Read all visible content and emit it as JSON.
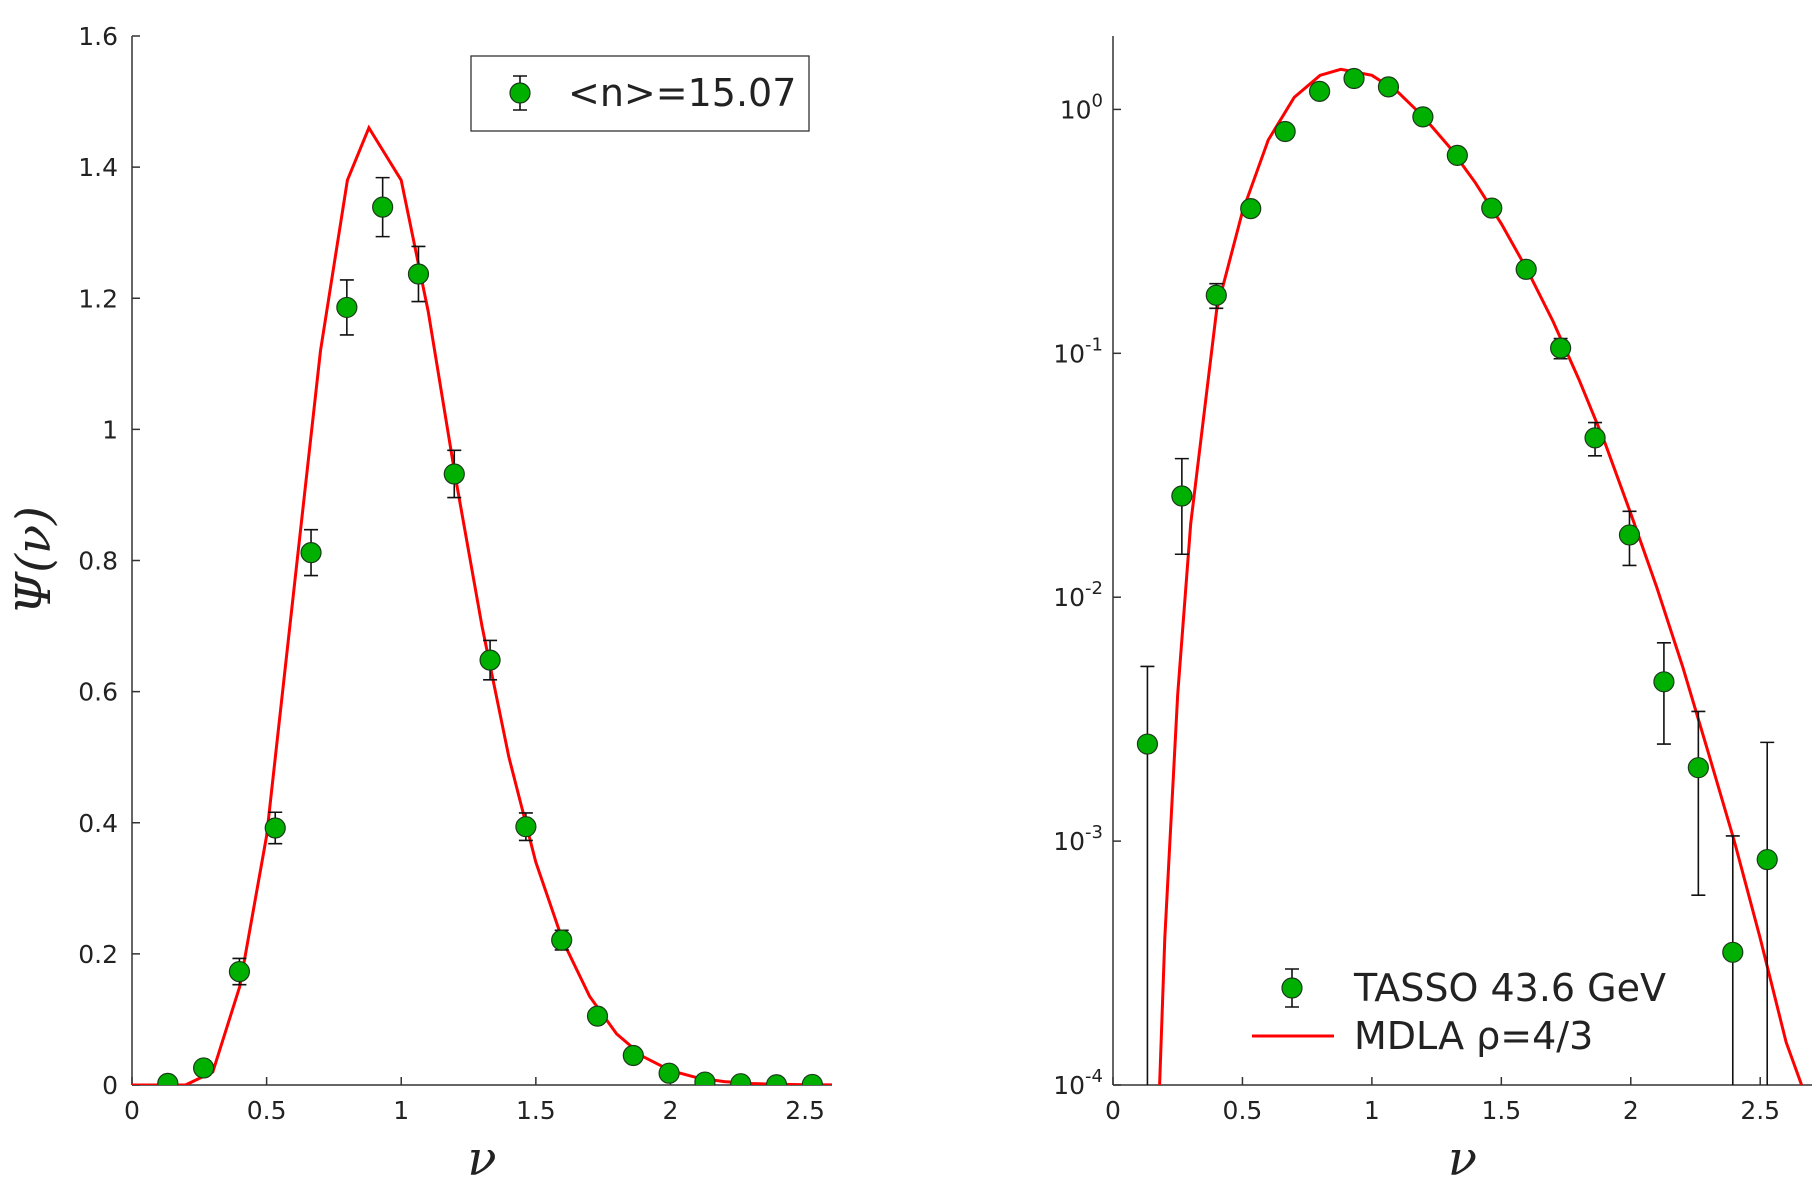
{
  "chart_data": [
    {
      "type": "errorbar",
      "xlabel": "ν",
      "ylabel": "Ψ(ν)",
      "xlim": [
        0,
        2.6
      ],
      "ylim": [
        0,
        1.6
      ],
      "xticks": [
        0,
        0.5,
        1,
        1.5,
        2,
        2.5
      ],
      "yticks": [
        0,
        0.2,
        0.4,
        0.6,
        0.8,
        1,
        1.2,
        1.4,
        1.6
      ],
      "legend": "upper right",
      "log_y": false,
      "series": [
        {
          "name": "<n>=15.07",
          "style": "markers",
          "color": "#00b000",
          "x": [
            0.133,
            0.266,
            0.399,
            0.532,
            0.665,
            0.798,
            0.931,
            1.064,
            1.197,
            1.33,
            1.463,
            1.596,
            1.729,
            1.862,
            1.995,
            2.128,
            2.261,
            2.394,
            2.527
          ],
          "values": [
            0.0025,
            0.026,
            0.173,
            0.392,
            0.812,
            1.186,
            1.339,
            1.237,
            0.932,
            0.648,
            0.394,
            0.221,
            0.105,
            0.045,
            0.018,
            0.0045,
            0.002,
            0.00035,
            0.00084
          ],
          "errors": [
            0.003,
            0.011,
            0.02,
            0.024,
            0.035,
            0.042,
            0.045,
            0.042,
            0.036,
            0.03,
            0.021,
            0.015,
            0.01,
            0.007,
            0.004,
            0.002,
            0.0014,
            0.0007,
            0.0017
          ]
        },
        {
          "style": "line",
          "color": "#ff0000",
          "x": [
            0,
            0.1,
            0.2,
            0.3,
            0.4,
            0.5,
            0.6,
            0.7,
            0.8,
            0.88,
            1.0,
            1.1,
            1.2,
            1.3,
            1.4,
            1.5,
            1.6,
            1.7,
            1.8,
            1.9,
            2.0,
            2.1,
            2.2,
            2.3,
            2.4,
            2.5,
            2.6
          ],
          "values": [
            0,
            0,
            0.0002,
            0.02,
            0.15,
            0.38,
            0.75,
            1.12,
            1.38,
            1.46,
            1.38,
            1.18,
            0.93,
            0.7,
            0.5,
            0.34,
            0.22,
            0.135,
            0.078,
            0.043,
            0.022,
            0.011,
            0.0052,
            0.0023,
            0.001,
            0.0004,
            0.00015
          ]
        }
      ]
    },
    {
      "type": "errorbar",
      "xlabel": "ν",
      "xlim": [
        0,
        2.7
      ],
      "ylim": [
        0.0001,
        2
      ],
      "xticks": [
        0,
        0.5,
        1,
        1.5,
        2,
        2.5
      ],
      "yticks": [
        {
          "value": 0.0001,
          "label": "10^-4"
        },
        {
          "value": 0.001,
          "label": "10^-3"
        },
        {
          "value": 0.01,
          "label": "10^-2"
        },
        {
          "value": 0.1,
          "label": "10^-1"
        },
        {
          "value": 1,
          "label": "10^0"
        }
      ],
      "legend": "lower center",
      "log_y": true,
      "series": [
        {
          "name": "TASSO 43.6 GeV",
          "style": "markers",
          "color": "#00b000",
          "x": [
            0.133,
            0.266,
            0.399,
            0.532,
            0.665,
            0.798,
            0.931,
            1.064,
            1.197,
            1.33,
            1.463,
            1.596,
            1.729,
            1.862,
            1.995,
            2.128,
            2.261,
            2.394,
            2.527
          ],
          "values": [
            0.0025,
            0.026,
            0.173,
            0.392,
            0.812,
            1.186,
            1.339,
            1.237,
            0.932,
            0.648,
            0.394,
            0.221,
            0.105,
            0.045,
            0.018,
            0.0045,
            0.002,
            0.00035,
            0.00084
          ],
          "errors": [
            0.0027,
            0.011,
            0.02,
            0.024,
            0.035,
            0.042,
            0.045,
            0.042,
            0.036,
            0.03,
            0.021,
            0.015,
            0.01,
            0.007,
            0.0045,
            0.002,
            0.0014,
            0.0007,
            0.0017
          ]
        },
        {
          "name": "MDLA  ρ=4/3",
          "style": "line",
          "color": "#ff0000",
          "x": [
            0.18,
            0.2,
            0.25,
            0.3,
            0.4,
            0.5,
            0.6,
            0.7,
            0.8,
            0.88,
            1.0,
            1.1,
            1.2,
            1.3,
            1.4,
            1.5,
            1.6,
            1.7,
            1.8,
            1.9,
            2.0,
            2.1,
            2.2,
            2.3,
            2.4,
            2.5,
            2.6,
            2.66
          ],
          "values": [
            0.0001,
            0.0004,
            0.004,
            0.02,
            0.15,
            0.38,
            0.75,
            1.12,
            1.38,
            1.46,
            1.38,
            1.18,
            0.93,
            0.7,
            0.5,
            0.34,
            0.22,
            0.135,
            0.078,
            0.043,
            0.022,
            0.011,
            0.0052,
            0.0023,
            0.001,
            0.0004,
            0.00015,
            0.0001
          ]
        }
      ]
    }
  ]
}
